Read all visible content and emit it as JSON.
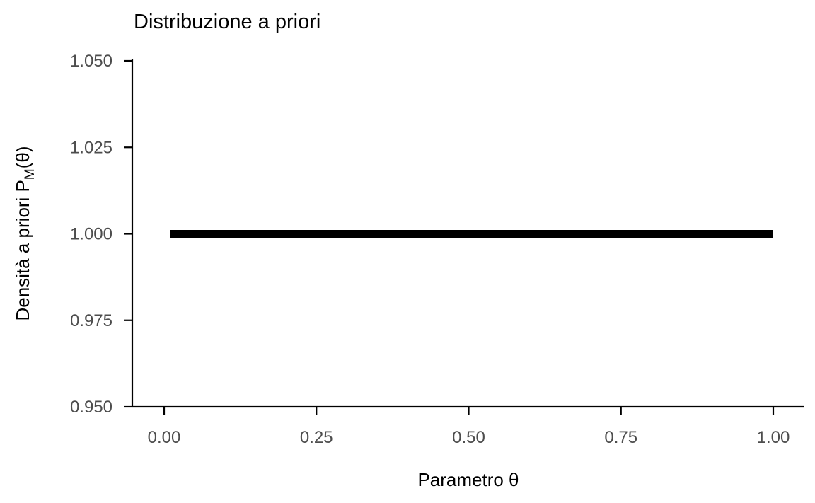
{
  "chart_data": {
    "type": "line",
    "title": "Distribuzione a priori",
    "xlabel": "Parametro θ",
    "ylabel": {
      "prefix": "Densità a priori P",
      "subscript": "M",
      "suffix": "(θ)"
    },
    "xlim": [
      -0.05,
      1.05
    ],
    "ylim": [
      0.95,
      1.05
    ],
    "x_ticks": [
      0.0,
      0.25,
      0.5,
      0.75,
      1.0
    ],
    "x_tick_labels": [
      "0.00",
      "0.25",
      "0.50",
      "0.75",
      "1.00"
    ],
    "y_ticks": [
      0.95,
      0.975,
      1.0,
      1.025,
      1.05
    ],
    "y_tick_labels": [
      "0.950",
      "0.975",
      "1.000",
      "1.025",
      "1.050"
    ],
    "grid": false,
    "series": [
      {
        "x": [
          0.01,
          1.0
        ],
        "y": [
          1.0,
          1.0
        ],
        "color": "#000000"
      }
    ]
  }
}
